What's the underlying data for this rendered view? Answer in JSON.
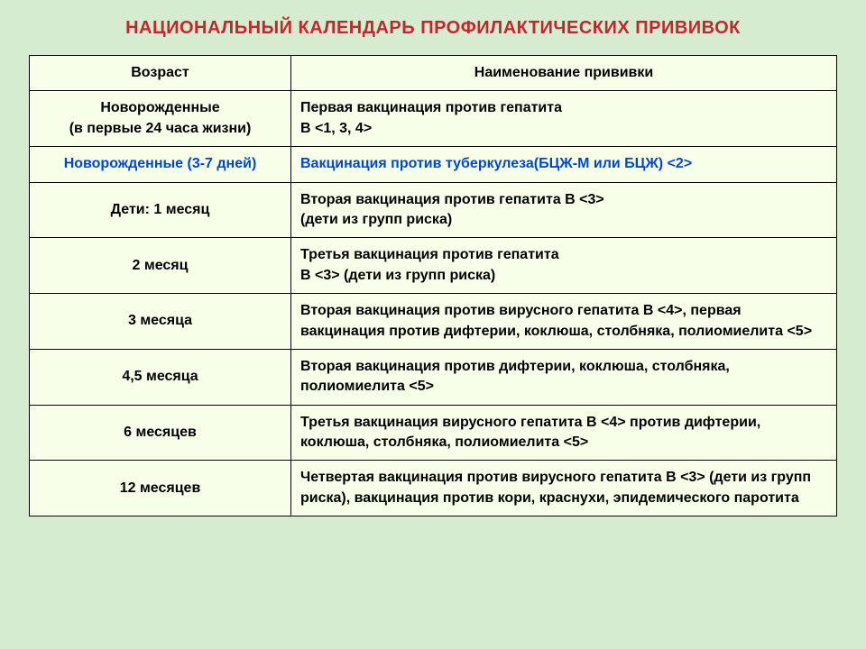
{
  "title": "НАЦИОНАЛЬНЫЙ КАЛЕНДАРЬ ПРОФИЛАКТИЧЕСКИХ ПРИВИВОК",
  "title_color": "#c2272d",
  "columns": {
    "age": "Возраст",
    "vaccine": "Наименование прививки"
  },
  "rows": [
    {
      "age": "Новорожденные\n(в первые 24 часа жизни)",
      "vaccine": "Первая вакцинация против гепатита\nВ <1, 3, 4>",
      "highlight": false
    },
    {
      "age": "Новорожденные (3-7 дней)",
      "vaccine": "Вакцинация против туберкулеза(БЦЖ-М или БЦЖ) <2>",
      "highlight": true
    },
    {
      "age": "Дети: 1 месяц",
      "vaccine": "Вторая вакцинация против гепатита В <3>\n (дети из групп риска)",
      "highlight": false
    },
    {
      "age": "2 месяц",
      "vaccine": "Третья вакцинация против гепатита\nВ <3> (дети из групп риска)",
      "highlight": false
    },
    {
      "age": "3 месяца",
      "vaccine": "Вторая вакцинация против вирусного гепатита В <4>, первая вакцинация против дифтерии, коклюша, столбняка, полиомиелита <5>",
      "highlight": false
    },
    {
      "age": "4,5 месяца",
      "vaccine": "Вторая вакцинация против дифтерии, коклюша, столбняка, полиомиелита <5>",
      "highlight": false
    },
    {
      "age": "6 месяцев",
      "vaccine": "Третья вакцинация вирусного гепатита В <4> против дифтерии, коклюша, столбняка, полиомиелита <5>",
      "highlight": false
    },
    {
      "age": "12 месяцев",
      "vaccine": "Четвертая вакцинация против вирусного гепатита В <3> (дети из групп риска), вакцинация против кори, краснухи, эпидемического паротита",
      "highlight": false
    }
  ],
  "colors": {
    "page_bg": "#d5ecd0",
    "table_bg": "#f8ffe9",
    "border": "#000000",
    "highlight_text": "#0047d0",
    "text": "#000000"
  }
}
